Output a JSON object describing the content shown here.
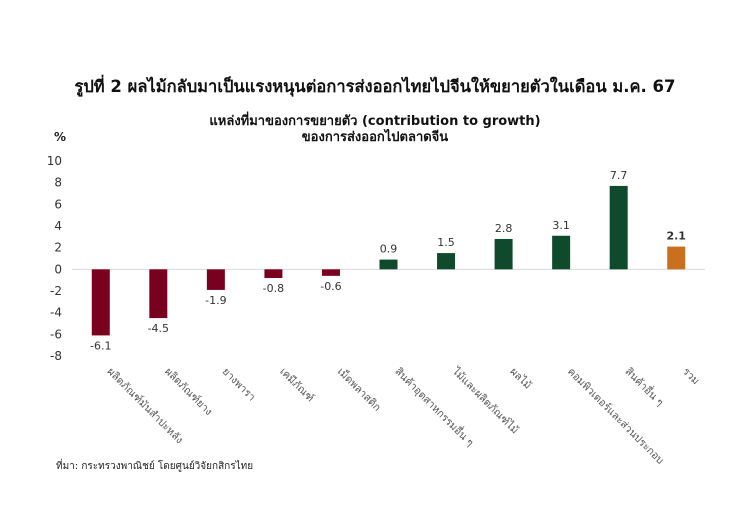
{
  "figure_title": "รูปที่ 2 ผลไม้กลับมาเป็นแรงหนุนต่อการส่งออกไทยไปจีนให้ขยายตัวในเดือน ม.ค. 67",
  "chart_title_line1": "แหล่งที่มาของการขยายตัว (contribution to growth)",
  "chart_title_line2": "ของการส่งออกไปตลาดจีน",
  "source_note": "ที่มา: กระทรวงพาณิชย์ โดยศูนย์วิจัยกสิกรไทย",
  "colors": {
    "negative": "#7a0020",
    "positive": "#0f4a2c",
    "total": "#c8701e"
  },
  "chart_data": {
    "type": "bar",
    "ylabel": "%",
    "ylim": [
      -8,
      10
    ],
    "yticks": [
      10,
      8,
      6,
      4,
      2,
      0,
      -2,
      -4,
      -6,
      -8
    ],
    "categories": [
      "ผลิตภัณฑ์มันสำปะหลัง",
      "ผลิตภัณฑ์ยาง",
      "ยางพารา",
      "เคมีภัณฑ์",
      "เม็ดพลาสติก",
      "สินค้าอุตสาหกรรมอื่น ๆ",
      "ไม้และผลิตภัณฑ์ไม้",
      "ผลไม้",
      "คอมพิวเตอร์และส่วนประกอบ",
      "สินค้าอื่น ๆ",
      "รวม"
    ],
    "values": [
      -6.1,
      -4.5,
      -1.9,
      -0.8,
      -0.6,
      0.9,
      1.5,
      2.8,
      3.1,
      7.7,
      2.1
    ],
    "value_labels": [
      "-6.1",
      "-4.5",
      "-1.9",
      "-0.8",
      "-0.6",
      "0.9",
      "1.5",
      "2.8",
      "3.1",
      "7.7",
      "2.1"
    ],
    "grid": false,
    "legend": "none"
  }
}
